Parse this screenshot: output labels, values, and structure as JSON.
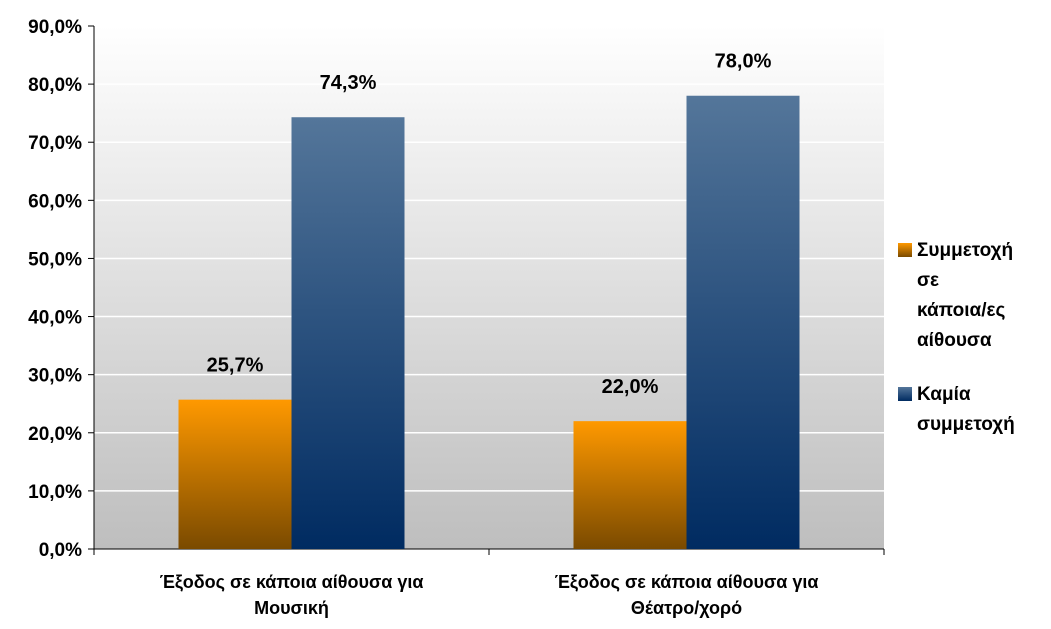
{
  "chart_data": {
    "type": "bar",
    "categories": [
      "Έξοδος σε κάποια αίθουσα για Μουσική",
      "Έξοδος σε κάποια αίθουσα για Θέατρο/χορό"
    ],
    "category_lines": [
      [
        "Έξοδος σε κάποια αίθουσα για",
        "Μουσική"
      ],
      [
        "Έξοδος σε κάποια αίθουσα για",
        "Θέατρο/χορό"
      ]
    ],
    "series": [
      {
        "name": "Συμμετοχή σε κάποια/ες αίθουσα",
        "name_lines": [
          "Συμμετοχή",
          "σε",
          "κάποια/ες",
          "αίθουσα"
        ],
        "values": [
          25.7,
          22.0
        ],
        "data_labels": [
          "25,7%",
          "22,0%"
        ],
        "color_top": "#FF9900",
        "color_bottom": "#7A4A00"
      },
      {
        "name": "Καμία συμμετοχή",
        "name_lines": [
          "Καμία",
          "συμμετοχή"
        ],
        "values": [
          74.3,
          78.0
        ],
        "data_labels": [
          "74,3%",
          "78,0%"
        ],
        "color_top": "#54769A",
        "color_bottom": "#002B61"
      }
    ],
    "yticks": [
      "0,0%",
      "10,0%",
      "20,0%",
      "30,0%",
      "40,0%",
      "50,0%",
      "60,0%",
      "70,0%",
      "80,0%",
      "90,0%"
    ],
    "ylim": [
      0,
      90
    ],
    "grid": true,
    "legend_position": "right",
    "title": "",
    "xlabel": "",
    "ylabel": ""
  }
}
